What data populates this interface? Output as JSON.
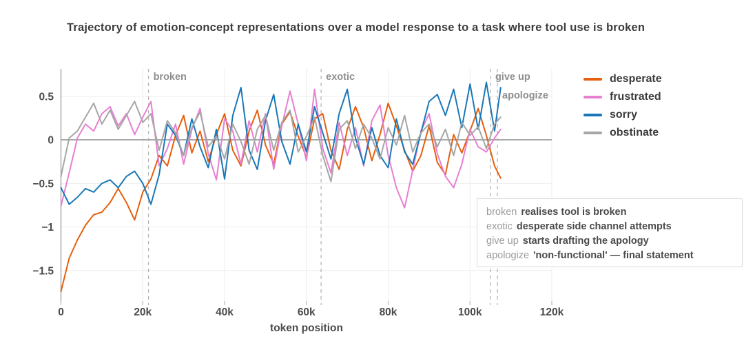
{
  "title": "Trajectory of emotion-concept representations over a model response to a task where tool use is broken",
  "chart_data": {
    "type": "line",
    "title": "Trajectory of emotion-concept representations over a model response to a task where tool use is broken",
    "xlabel": "token position",
    "ylabel": "",
    "xlim": [
      0,
      123
    ],
    "ylim": [
      -1.85,
      0.75
    ],
    "grid": true,
    "legend_position": "right",
    "xticks": [
      {
        "value": 0,
        "label": "0"
      },
      {
        "value": 20,
        "label": "20k"
      },
      {
        "value": 40,
        "label": "40k"
      },
      {
        "value": 60,
        "label": "60k"
      },
      {
        "value": 80,
        "label": "80k"
      },
      {
        "value": 100,
        "label": "100k"
      },
      {
        "value": 120,
        "label": "120k"
      }
    ],
    "yticks": [
      {
        "value": 0.5,
        "label": "0.5"
      },
      {
        "value": 0,
        "label": "0"
      },
      {
        "value": -0.5,
        "label": "−0.5"
      },
      {
        "value": -1,
        "label": "−1"
      },
      {
        "value": -1.5,
        "label": "−1.5"
      }
    ],
    "x": [
      0,
      2,
      4,
      6,
      8,
      10,
      12,
      14,
      16,
      18,
      20,
      22,
      24,
      26,
      28,
      30,
      32,
      34,
      36,
      38,
      40,
      42,
      44,
      46,
      48,
      50,
      52,
      54,
      56,
      58,
      60,
      62,
      64,
      66,
      68,
      70,
      72,
      74,
      76,
      78,
      80,
      82,
      84,
      86,
      88,
      90,
      92,
      94,
      96,
      98,
      100,
      102,
      104,
      106,
      107.5
    ],
    "series": [
      {
        "name": "desperate",
        "color": "#e55f0d",
        "values": [
          -1.74,
          -1.36,
          -1.15,
          -0.98,
          -0.86,
          -0.83,
          -0.72,
          -0.56,
          -0.72,
          -0.92,
          -0.6,
          -0.45,
          -0.18,
          -0.3,
          0.05,
          0.28,
          -0.15,
          0.1,
          -0.25,
          0.06,
          0.3,
          -0.12,
          -0.3,
          0.1,
          0.34,
          -0.06,
          -0.28,
          0.18,
          0.32,
          0.04,
          -0.2,
          0.24,
          0.3,
          -0.12,
          -0.34,
          0.12,
          0.38,
          0.14,
          -0.24,
          0.06,
          0.42,
          0.16,
          -0.12,
          -0.36,
          -0.18,
          0.16,
          -0.26,
          -0.4,
          0.06,
          -0.15,
          0.1,
          0.36,
          0.05,
          -0.3,
          -0.44
        ]
      },
      {
        "name": "frustrated",
        "color": "#e77fd2",
        "values": [
          -0.76,
          -0.38,
          0.02,
          0.18,
          0.1,
          0.3,
          0.38,
          0.16,
          0.3,
          0.06,
          0.26,
          0.44,
          -0.3,
          -0.1,
          0.18,
          -0.28,
          0.12,
          0.36,
          -0.16,
          -0.46,
          0.24,
          0.1,
          -0.28,
          0.22,
          -0.14,
          0.3,
          -0.34,
          0.16,
          0.56,
          0.18,
          -0.24,
          0.58,
          -0.1,
          -0.38,
          0.2,
          -0.18,
          0.14,
          -0.3,
          0.22,
          0.4,
          -0.18,
          -0.55,
          -0.78,
          -0.35,
          0.1,
          0.3,
          -0.16,
          -0.42,
          -0.55,
          -0.28,
          0.12,
          -0.08,
          -0.14,
          0.02,
          0.12
        ]
      },
      {
        "name": "sorry",
        "color": "#1878b7",
        "values": [
          -0.55,
          -0.74,
          -0.66,
          -0.56,
          -0.6,
          -0.5,
          -0.46,
          -0.55,
          -0.42,
          -0.36,
          -0.5,
          -0.74,
          -0.4,
          0.18,
          0.05,
          -0.18,
          0.24,
          -0.08,
          -0.32,
          0.12,
          -0.45,
          0.28,
          0.6,
          -0.12,
          -0.34,
          0.22,
          0.52,
          -0.02,
          -0.28,
          0.18,
          -0.14,
          0.38,
          0.08,
          -0.22,
          0.3,
          0.58,
          0.02,
          -0.28,
          0.14,
          -0.18,
          -0.32,
          0.24,
          -0.14,
          -0.28,
          0.08,
          0.44,
          0.52,
          0.28,
          0.58,
          0.14,
          0.64,
          0.12,
          0.66,
          0.1,
          0.6
        ]
      },
      {
        "name": "obstinate",
        "color": "#a6a6a6",
        "values": [
          -0.42,
          0.02,
          0.1,
          0.26,
          0.42,
          0.18,
          0.34,
          0.12,
          0.28,
          0.44,
          0.2,
          0.3,
          -0.12,
          0.22,
          0.08,
          -0.18,
          0.14,
          0.32,
          -0.08,
          0.04,
          -0.22,
          0.18,
          -0.02,
          -0.28,
          0.12,
          0.28,
          -0.12,
          0.2,
          0.34,
          -0.14,
          0.04,
          0.26,
          -0.18,
          -0.48,
          0.12,
          0.22,
          -0.1,
          0.18,
          0.02,
          -0.22,
          0.14,
          -0.06,
          0.28,
          -0.14,
          0.08,
          0.18,
          -0.08,
          0.12,
          -0.18,
          0.2,
          0.05,
          0.15,
          -0.1,
          0.18,
          0.26
        ]
      }
    ],
    "events": [
      {
        "label": "broken",
        "x": 21.4,
        "description": "realises tool is broken"
      },
      {
        "label": "exotic",
        "x": 63.6,
        "description": "desperate side channel attempts"
      },
      {
        "label": "give up",
        "x": 105.0,
        "description": "starts drafting the apology"
      },
      {
        "label": "apologize",
        "x": 106.7,
        "description": "'non-functional' — final statement"
      }
    ]
  },
  "style_colors": {
    "gridline": "#ececec",
    "zero_line": "#8c8c8c",
    "axis_spine": "#9a9a9a",
    "tick_mark": "#b9b9b9",
    "dashed_event_line": "#b5b5b5",
    "event_label": "#8f8f8f",
    "tick_label": "#4a4a4a"
  }
}
